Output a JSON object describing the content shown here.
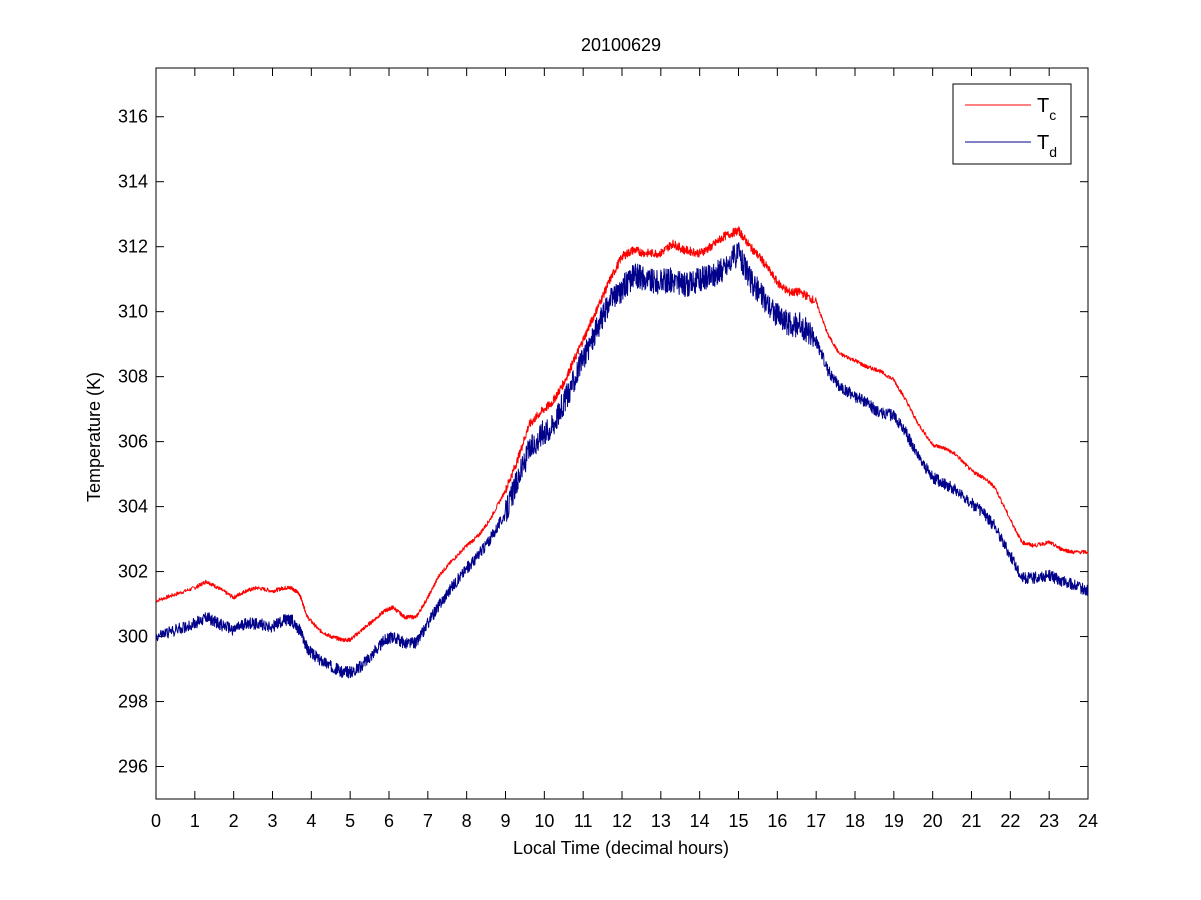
{
  "chart_data": {
    "type": "line",
    "title": "20100629",
    "xlabel": "Local Time (decimal hours)",
    "ylabel": "Temperature (K)",
    "xlim": [
      0,
      24
    ],
    "ylim": [
      295,
      317.5
    ],
    "xticks": [
      0,
      1,
      2,
      3,
      4,
      5,
      6,
      7,
      8,
      9,
      10,
      11,
      12,
      13,
      14,
      15,
      16,
      17,
      18,
      19,
      20,
      21,
      22,
      23,
      24
    ],
    "yticks": [
      296,
      298,
      300,
      302,
      304,
      306,
      308,
      310,
      312,
      314,
      316
    ],
    "grid": false,
    "legend_position": "top-right",
    "series": [
      {
        "name": "T",
        "subscript": "c",
        "color": "#ff0000",
        "x": [
          0,
          0.5,
          1,
          1.3,
          1.6,
          2,
          2.3,
          2.6,
          3,
          3.3,
          3.5,
          3.7,
          3.9,
          4.2,
          4.5,
          4.8,
          5,
          5.3,
          5.6,
          5.9,
          6.1,
          6.4,
          6.7,
          7,
          7.3,
          7.6,
          8,
          8.3,
          8.6,
          9,
          9.3,
          9.6,
          9.9,
          10.2,
          10.5,
          10.8,
          11.1,
          11.4,
          11.7,
          12,
          12.3,
          12.6,
          13,
          13.3,
          13.6,
          14,
          14.3,
          14.6,
          15,
          15.3,
          15.6,
          16,
          16.3,
          16.6,
          17,
          17.3,
          17.6,
          18,
          18.3,
          18.6,
          19,
          19.3,
          19.6,
          20,
          20.3,
          20.6,
          21,
          21.3,
          21.6,
          22,
          22.3,
          22.6,
          23,
          23.3,
          23.6,
          24
        ],
        "values": [
          301.1,
          301.3,
          301.5,
          301.7,
          301.5,
          301.2,
          301.4,
          301.5,
          301.4,
          301.5,
          301.5,
          301.3,
          300.6,
          300.2,
          300.0,
          299.9,
          299.9,
          300.2,
          300.5,
          300.8,
          300.9,
          300.6,
          300.6,
          301.2,
          301.9,
          302.3,
          302.8,
          303.1,
          303.6,
          304.5,
          305.4,
          306.5,
          306.9,
          307.2,
          307.8,
          308.6,
          309.4,
          310.2,
          311.0,
          311.7,
          311.9,
          311.8,
          311.8,
          312.1,
          311.9,
          311.8,
          312.0,
          312.3,
          312.5,
          312.0,
          311.6,
          310.9,
          310.6,
          310.6,
          310.3,
          309.3,
          308.7,
          308.5,
          308.3,
          308.2,
          307.9,
          307.3,
          306.6,
          305.9,
          305.8,
          305.6,
          305.1,
          304.9,
          304.6,
          303.6,
          302.9,
          302.8,
          302.9,
          302.7,
          302.6,
          302.6
        ]
      },
      {
        "name": "T",
        "subscript": "d",
        "color": "#00008b",
        "x": [
          0,
          0.5,
          1,
          1.3,
          1.6,
          2,
          2.3,
          2.6,
          3,
          3.3,
          3.5,
          3.7,
          3.9,
          4.2,
          4.5,
          4.8,
          5,
          5.3,
          5.6,
          5.9,
          6.1,
          6.4,
          6.7,
          7,
          7.3,
          7.6,
          8,
          8.3,
          8.6,
          9,
          9.3,
          9.6,
          9.9,
          10.2,
          10.5,
          10.8,
          11.1,
          11.4,
          11.7,
          12,
          12.3,
          12.6,
          13,
          13.3,
          13.6,
          14,
          14.3,
          14.6,
          15,
          15.3,
          15.6,
          16,
          16.3,
          16.6,
          17,
          17.3,
          17.6,
          18,
          18.3,
          18.6,
          19,
          19.3,
          19.6,
          20,
          20.3,
          20.6,
          21,
          21.3,
          21.6,
          22,
          22.3,
          22.6,
          23,
          23.3,
          23.6,
          24
        ],
        "values": [
          300.0,
          300.2,
          300.4,
          300.6,
          300.4,
          300.2,
          300.4,
          300.4,
          300.3,
          300.5,
          300.5,
          300.2,
          299.6,
          299.3,
          299.1,
          298.9,
          298.9,
          299.1,
          299.5,
          299.9,
          300.0,
          299.8,
          299.8,
          300.4,
          301.0,
          301.5,
          302.1,
          302.5,
          303.0,
          303.8,
          304.8,
          305.7,
          306.2,
          306.5,
          307.2,
          308.0,
          308.8,
          309.6,
          310.3,
          310.7,
          311.1,
          311.0,
          310.9,
          311.0,
          310.8,
          311.0,
          311.1,
          311.3,
          311.8,
          311.0,
          310.5,
          309.9,
          309.6,
          309.6,
          309.1,
          308.2,
          307.7,
          307.4,
          307.2,
          306.9,
          306.8,
          306.3,
          305.6,
          304.9,
          304.7,
          304.5,
          304.1,
          303.8,
          303.4,
          302.5,
          301.8,
          301.8,
          301.9,
          301.7,
          301.6,
          301.4
        ]
      }
    ]
  }
}
